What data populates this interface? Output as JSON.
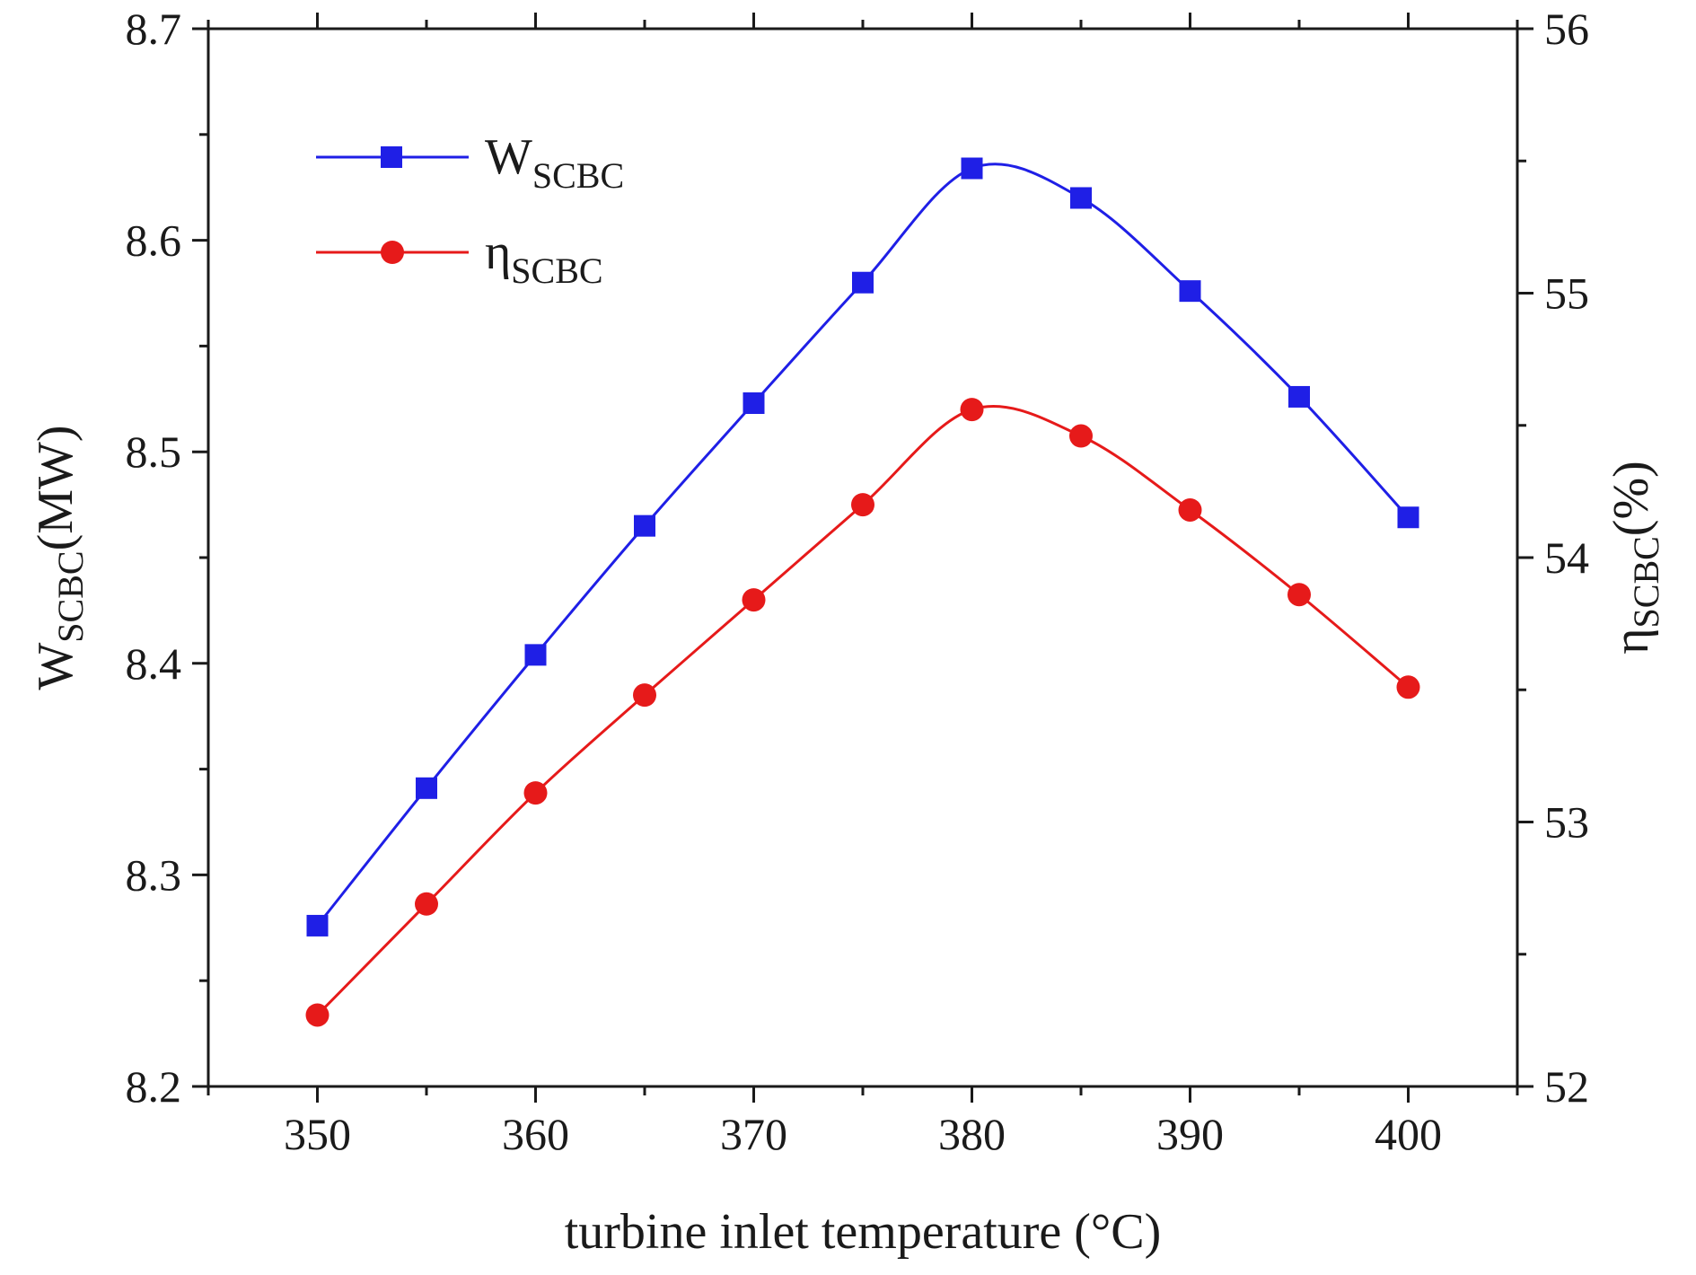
{
  "chart_data": {
    "type": "line",
    "title": "",
    "xlabel": "turbine inlet temperature (°C)",
    "x": [
      350,
      355,
      360,
      365,
      370,
      375,
      380,
      385,
      390,
      395,
      400
    ],
    "xlim": [
      345,
      405
    ],
    "xticks": [
      350,
      360,
      370,
      380,
      390,
      400
    ],
    "xtick_labels": [
      "350",
      "360",
      "370",
      "380",
      "390",
      "400"
    ],
    "left_axis": {
      "label_main": "W",
      "label_sub": "SCBC",
      "label_unit": "(MW)",
      "ylim": [
        8.2,
        8.7
      ],
      "ticks": [
        8.2,
        8.3,
        8.4,
        8.5,
        8.6,
        8.7
      ],
      "tick_labels": [
        "8.2",
        "8.3",
        "8.4",
        "8.5",
        "8.6",
        "8.7"
      ]
    },
    "right_axis": {
      "label_main": "η",
      "label_sub": "SCBC",
      "label_unit": "(%)",
      "ylim": [
        52,
        56
      ],
      "ticks": [
        52,
        53,
        54,
        55,
        56
      ],
      "tick_labels": [
        "52",
        "53",
        "54",
        "55",
        "56"
      ]
    },
    "series": [
      {
        "name": "W_SCBC",
        "legend_main": "W",
        "legend_sub": "SCBC",
        "axis": "left",
        "color": "#1f1fe6",
        "marker": "square",
        "values": [
          8.276,
          8.341,
          8.404,
          8.465,
          8.523,
          8.58,
          8.634,
          8.62,
          8.576,
          8.526,
          8.469
        ]
      },
      {
        "name": "η_SCBC",
        "legend_main": "η",
        "legend_sub": "SCBC",
        "axis": "right",
        "color": "#e61a1a",
        "marker": "circle",
        "values": [
          52.27,
          52.69,
          53.11,
          53.48,
          53.84,
          54.2,
          54.56,
          54.46,
          54.18,
          53.86,
          53.51
        ]
      }
    ],
    "legend_position": "top-left",
    "grid": false
  }
}
